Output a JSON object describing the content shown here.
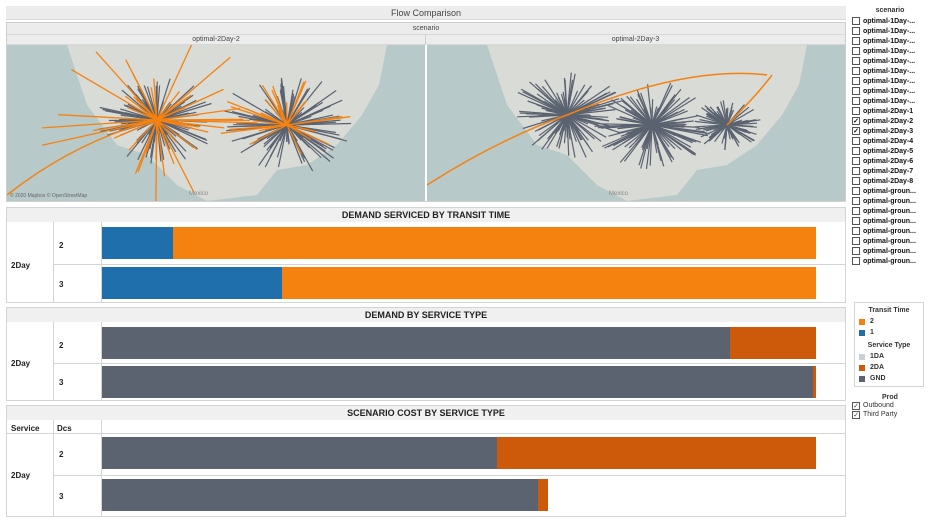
{
  "flow": {
    "title": "Flow Comparison",
    "sub": "scenario",
    "left_title": "optimal-2Day-2",
    "right_title": "optimal-2Day-3",
    "attribution": "© 2020 Mapbox © OpenStreetMap",
    "mexico_label": "Mexico"
  },
  "sections": {
    "transit": {
      "title": "DEMAND SERVICED BY TRANSIT TIME",
      "group": "2Day",
      "rows": [
        {
          "label": "2",
          "segments": [
            {
              "key": "1",
              "value": 0.1
            },
            {
              "key": "2",
              "value": 0.9
            }
          ]
        },
        {
          "label": "3",
          "segments": [
            {
              "key": "1",
              "value": 0.252
            },
            {
              "key": "2",
              "value": 0.748
            }
          ]
        }
      ]
    },
    "service": {
      "title": "DEMAND BY SERVICE TYPE",
      "group": "2Day",
      "rows": [
        {
          "label": "2",
          "segments": [
            {
              "key": "GND",
              "value": 0.879
            },
            {
              "key": "2DA",
              "value": 0.121
            }
          ]
        },
        {
          "label": "3",
          "segments": [
            {
              "key": "GND",
              "value": 0.996
            },
            {
              "key": "2DA",
              "value": 0.004
            }
          ]
        }
      ]
    },
    "cost": {
      "title": "SCENARIO COST BY SERVICE TYPE",
      "group": "2Day",
      "col1": "Service",
      "col2": "Dcs",
      "rows": [
        {
          "label": "2",
          "segments": [
            {
              "key": "GND",
              "value": 0.553
            },
            {
              "key": "2DA",
              "value": 0.447
            }
          ]
        },
        {
          "label": "3",
          "segments": [
            {
              "key": "GND",
              "value": 0.61
            },
            {
              "key": "2DA",
              "value": 0.015
            }
          ]
        }
      ]
    }
  },
  "scenario_filter": {
    "title": "scenario",
    "items": [
      {
        "label": "optimal-1Day-...",
        "checked": false
      },
      {
        "label": "optimal-1Day-...",
        "checked": false
      },
      {
        "label": "optimal-1Day-...",
        "checked": false
      },
      {
        "label": "optimal-1Day-...",
        "checked": false
      },
      {
        "label": "optimal-1Day-...",
        "checked": false
      },
      {
        "label": "optimal-1Day-...",
        "checked": false
      },
      {
        "label": "optimal-1Day-...",
        "checked": false
      },
      {
        "label": "optimal-1Day-...",
        "checked": false
      },
      {
        "label": "optimal-1Day-...",
        "checked": false
      },
      {
        "label": "optimal-2Day-1",
        "checked": false
      },
      {
        "label": "optimal-2Day-2",
        "checked": true
      },
      {
        "label": "optimal-2Day-3",
        "checked": true
      },
      {
        "label": "optimal-2Day-4",
        "checked": false
      },
      {
        "label": "optimal-2Day-5",
        "checked": false
      },
      {
        "label": "optimal-2Day-6",
        "checked": false
      },
      {
        "label": "optimal-2Day-7",
        "checked": false
      },
      {
        "label": "optimal-2Day-8",
        "checked": false
      },
      {
        "label": "optimal-groun...",
        "checked": false
      },
      {
        "label": "optimal-groun...",
        "checked": false
      },
      {
        "label": "optimal-groun...",
        "checked": false
      },
      {
        "label": "optimal-groun...",
        "checked": false
      },
      {
        "label": "optimal-groun...",
        "checked": false
      },
      {
        "label": "optimal-groun...",
        "checked": false
      },
      {
        "label": "optimal-groun...",
        "checked": false
      },
      {
        "label": "optimal-groun...",
        "checked": false
      }
    ]
  },
  "legend": {
    "transit_title": "Transit Time",
    "transit_items": [
      {
        "label": "2",
        "color": "#f5820f"
      },
      {
        "label": "1",
        "color": "#1f6fac"
      }
    ],
    "service_title": "Service Type",
    "service_items": [
      {
        "label": "1DA",
        "color": "#c9cfd6"
      },
      {
        "label": "2DA",
        "color": "#cc5a0a"
      },
      {
        "label": "GND",
        "color": "#5b6270"
      }
    ]
  },
  "prod": {
    "title": "Prod",
    "items": [
      {
        "label": "Outbound",
        "checked": true
      },
      {
        "label": "Third Party",
        "checked": true
      }
    ]
  },
  "colors": {
    "1": "#1f6fac",
    "2": "#f5820f",
    "GND": "#5b6270",
    "2DA": "#cc5a0a",
    "map_water": "#b7c9c9",
    "map_land": "#d9dbd6"
  }
}
